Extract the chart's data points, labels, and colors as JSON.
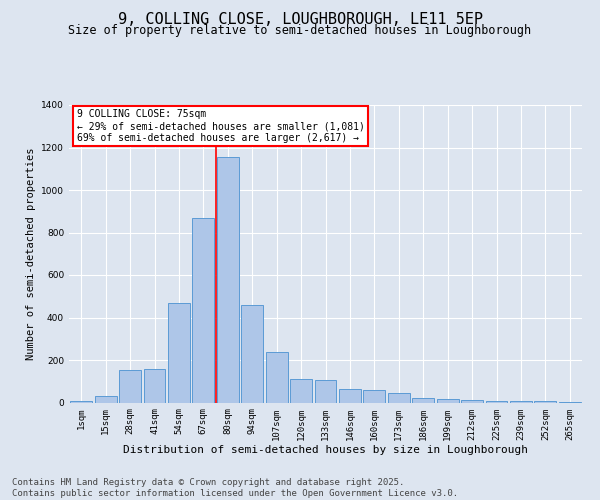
{
  "title": "9, COLLING CLOSE, LOUGHBOROUGH, LE11 5EP",
  "subtitle": "Size of property relative to semi-detached houses in Loughborough",
  "xlabel": "Distribution of semi-detached houses by size in Loughborough",
  "ylabel": "Number of semi-detached properties",
  "footer_line1": "Contains HM Land Registry data © Crown copyright and database right 2025.",
  "footer_line2": "Contains public sector information licensed under the Open Government Licence v3.0.",
  "annotation_title": "9 COLLING CLOSE: 75sqm",
  "annotation_line1": "← 29% of semi-detached houses are smaller (1,081)",
  "annotation_line2": "69% of semi-detached houses are larger (2,617) →",
  "bar_labels": [
    "1sqm",
    "15sqm",
    "28sqm",
    "41sqm",
    "54sqm",
    "67sqm",
    "80sqm",
    "94sqm",
    "107sqm",
    "120sqm",
    "133sqm",
    "146sqm",
    "160sqm",
    "173sqm",
    "186sqm",
    "199sqm",
    "212sqm",
    "225sqm",
    "239sqm",
    "252sqm",
    "265sqm"
  ],
  "bar_values": [
    5,
    30,
    155,
    160,
    470,
    870,
    1155,
    460,
    240,
    110,
    105,
    65,
    60,
    45,
    20,
    15,
    10,
    5,
    5,
    8,
    2
  ],
  "bar_color": "#aec6e8",
  "bar_edge_color": "#5b9bd5",
  "vline_color": "red",
  "vline_x_index": 6,
  "ylim": [
    0,
    1400
  ],
  "yticks": [
    0,
    200,
    400,
    600,
    800,
    1000,
    1200,
    1400
  ],
  "bg_color": "#dde5f0",
  "plot_bg_color": "#dde5f0",
  "grid_color": "white",
  "title_fontsize": 11,
  "subtitle_fontsize": 8.5,
  "xlabel_fontsize": 8,
  "ylabel_fontsize": 7.5,
  "tick_fontsize": 6.5,
  "footer_fontsize": 6.5,
  "annotation_fontsize": 7
}
